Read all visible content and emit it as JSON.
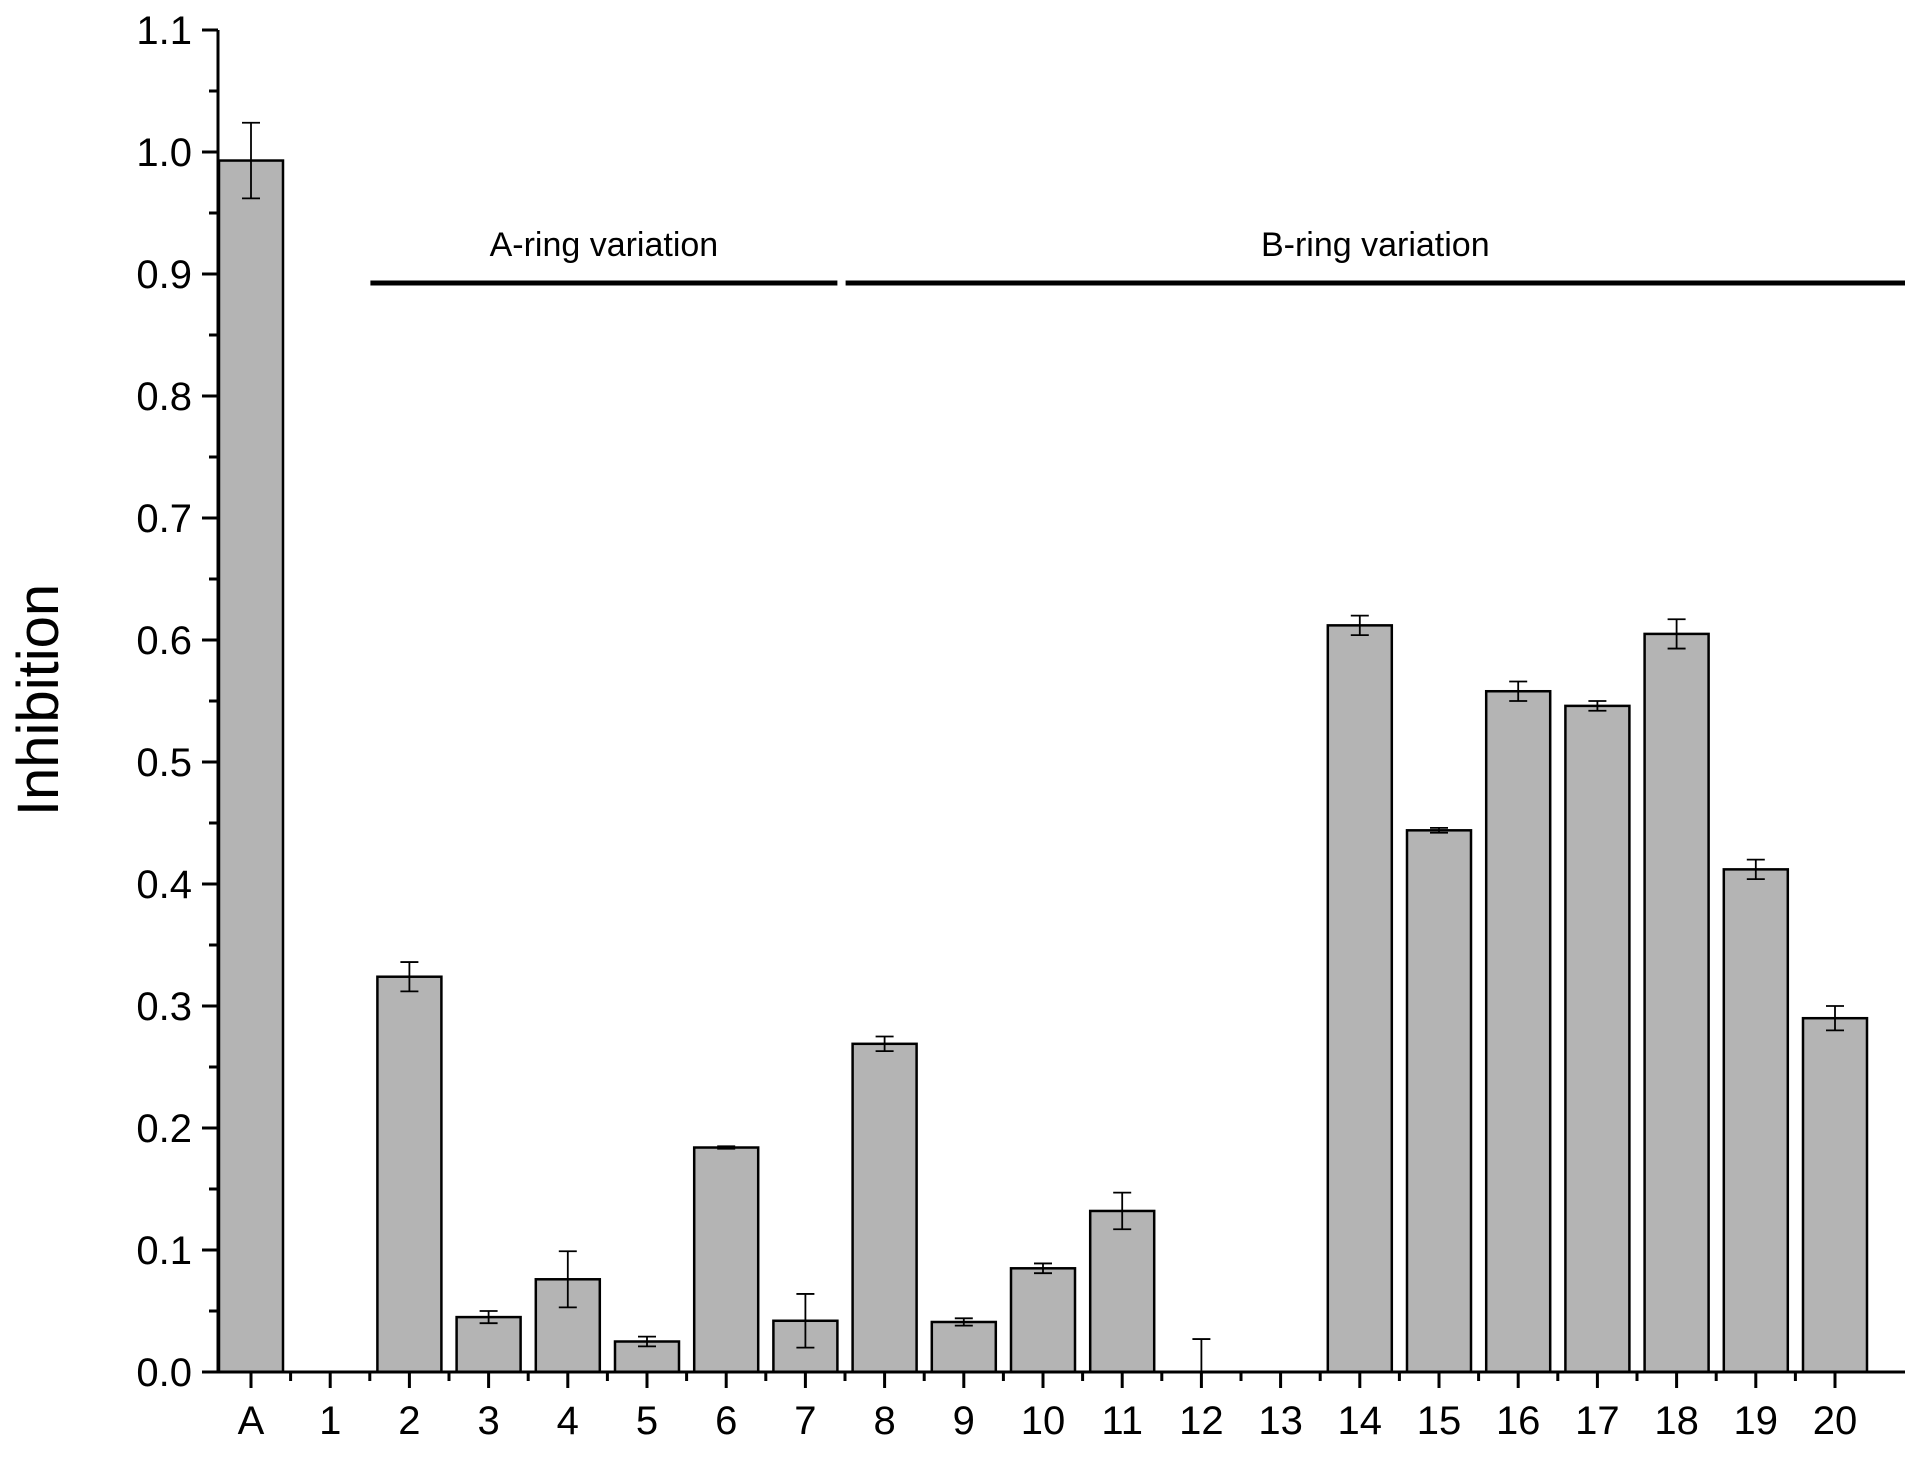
{
  "chart_data": {
    "type": "bar",
    "title": "",
    "xlabel": "",
    "ylabel": "Inhibition",
    "ylim": [
      0.0,
      1.1
    ],
    "yticks": [
      "0.0",
      "0.1",
      "0.2",
      "0.3",
      "0.4",
      "0.5",
      "0.6",
      "0.7",
      "0.8",
      "0.9",
      "1.0",
      "1.1"
    ],
    "grid": false,
    "bar_color": "#b4b4b4",
    "categories": [
      "A",
      "1",
      "2",
      "3",
      "4",
      "5",
      "6",
      "7",
      "8",
      "9",
      "10",
      "11",
      "12",
      "13",
      "14",
      "15",
      "16",
      "17",
      "18",
      "19",
      "20"
    ],
    "values": [
      0.993,
      0.0,
      0.324,
      0.045,
      0.076,
      0.025,
      0.184,
      0.042,
      0.269,
      0.041,
      0.085,
      0.132,
      0.0,
      0.0,
      0.612,
      0.444,
      0.558,
      0.546,
      0.605,
      0.412,
      0.29
    ],
    "errors": [
      0.031,
      0.0,
      0.012,
      0.005,
      0.023,
      0.004,
      0.001,
      0.022,
      0.006,
      0.003,
      0.004,
      0.015,
      0.027,
      0.0,
      0.008,
      0.002,
      0.008,
      0.004,
      0.012,
      0.008,
      0.01
    ],
    "groups": [
      {
        "label": "A-ring variation",
        "from": "2",
        "to": "7"
      },
      {
        "label": "B-ring variation",
        "from": "8",
        "to": "20"
      }
    ]
  }
}
